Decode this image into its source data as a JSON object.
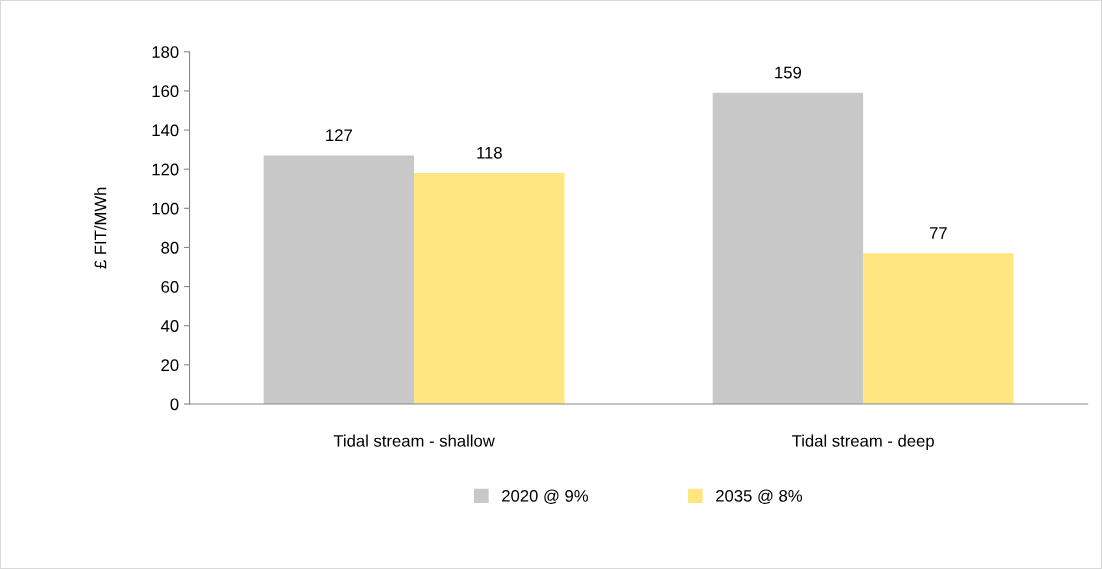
{
  "chart_data": {
    "type": "bar",
    "ylabel": "£ FIT/MWh",
    "categories": [
      "Tidal stream - shallow",
      "Tidal stream - deep"
    ],
    "series": [
      {
        "name": "2020 @ 9%",
        "color": "#c8c8c8",
        "values": [
          127,
          159
        ]
      },
      {
        "name": "2035 @ 8%",
        "color": "#ffe680",
        "values": [
          118,
          77
        ]
      }
    ],
    "ylim": [
      0,
      180
    ],
    "yticks": [
      0,
      20,
      40,
      60,
      80,
      100,
      120,
      140,
      160,
      180
    ],
    "grid": false,
    "legend": "bottom",
    "data_labels": true
  }
}
